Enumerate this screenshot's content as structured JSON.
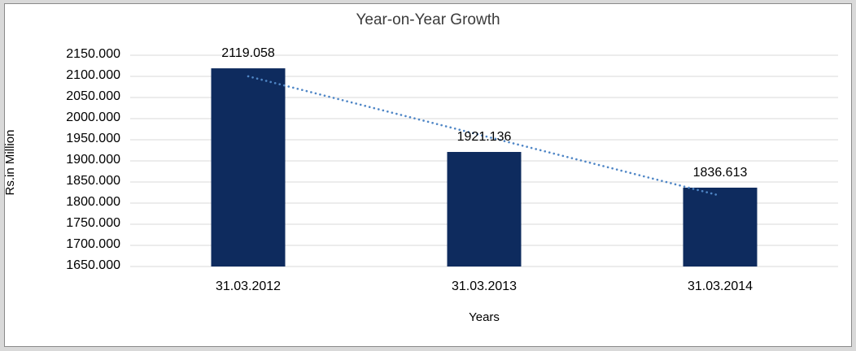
{
  "chart_data": {
    "type": "bar",
    "title": "Year-on-Year Growth",
    "xlabel": "Years",
    "ylabel": "Rs.in Million",
    "categories": [
      "31.03.2012",
      "31.03.2013",
      "31.03.2014"
    ],
    "values": [
      2119.058,
      1921.136,
      1836.613
    ],
    "value_labels": [
      "2119.058",
      "1921.136",
      "1836.613"
    ],
    "ytick_labels": [
      "2150.000",
      "2100.000",
      "2050.000",
      "2000.000",
      "1950.000",
      "1900.000",
      "1850.000",
      "1800.000",
      "1750.000",
      "1700.000",
      "1650.000"
    ],
    "ylim": [
      1650,
      2150
    ],
    "grid": true,
    "legend": false,
    "bar_color": "#0e2b5e",
    "gridline_color": "#d9d9d9",
    "trendline": {
      "type": "linear",
      "style": "dotted",
      "color": "#4f86c6"
    }
  }
}
